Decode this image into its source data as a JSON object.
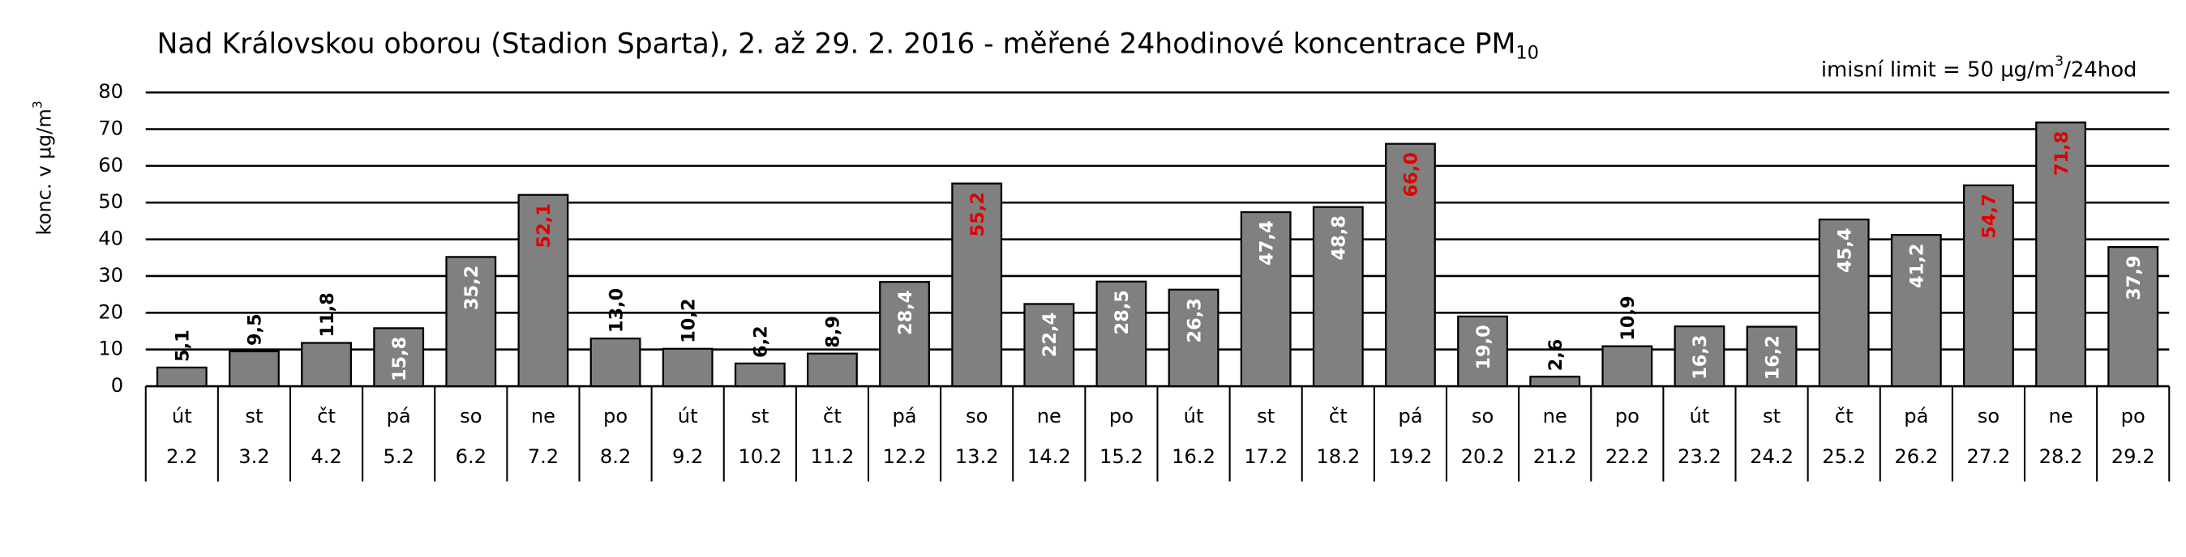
{
  "chart_data": {
    "type": "bar",
    "title": {
      "text": "Nad Královskou oborou (Stadion Sparta), 2. až 29. 2. 2016 - měřené 24hodinové koncentrace PM",
      "subscript": "10"
    },
    "note": {
      "text": "imisní limit = 50 µg/m",
      "superscript": "3",
      "tail": "/24hod"
    },
    "y_label": {
      "text": "konc. v µg/m",
      "superscript": "3"
    },
    "weekdays": [
      "út",
      "st",
      "čt",
      "pá",
      "so",
      "ne",
      "po",
      "út",
      "st",
      "čt",
      "pá",
      "so",
      "ne",
      "po",
      "út",
      "st",
      "čt",
      "pá",
      "so",
      "ne",
      "po",
      "út",
      "st",
      "čt",
      "pá",
      "so",
      "ne",
      "po"
    ],
    "categories": [
      "2.2",
      "3.2",
      "4.2",
      "5.2",
      "6.2",
      "7.2",
      "8.2",
      "9.2",
      "10.2",
      "11.2",
      "12.2",
      "13.2",
      "14.2",
      "15.2",
      "16.2",
      "17.2",
      "18.2",
      "19.2",
      "20.2",
      "21.2",
      "22.2",
      "23.2",
      "24.2",
      "25.2",
      "26.2",
      "27.2",
      "28.2",
      "29.2"
    ],
    "values": [
      5.1,
      9.5,
      11.8,
      15.8,
      35.2,
      52.1,
      13.0,
      10.2,
      6.2,
      8.9,
      28.4,
      55.2,
      22.4,
      28.5,
      26.3,
      47.4,
      48.8,
      66.0,
      19.0,
      2.6,
      10.9,
      16.3,
      16.2,
      45.4,
      41.2,
      54.7,
      71.8,
      37.9
    ],
    "value_labels": [
      "5,1",
      "9,5",
      "11,8",
      "15,8",
      "35,2",
      "52,1",
      "13,0",
      "10,2",
      "6,2",
      "8,9",
      "28,4",
      "55,2",
      "22,4",
      "28,5",
      "26,3",
      "47,4",
      "48,8",
      "66,0",
      "19,0",
      "2,6",
      "10,9",
      "16,3",
      "16,2",
      "45,4",
      "41,2",
      "54,7",
      "71,8",
      "37,9"
    ],
    "value_label_colors": [
      "#000",
      "#000",
      "#000",
      "#fff",
      "#fff",
      "#e00000",
      "#000",
      "#000",
      "#000",
      "#000",
      "#fff",
      "#e00000",
      "#fff",
      "#fff",
      "#fff",
      "#fff",
      "#fff",
      "#e00000",
      "#fff",
      "#000",
      "#000",
      "#fff",
      "#fff",
      "#fff",
      "#fff",
      "#e00000",
      "#e00000",
      "#fff"
    ],
    "color": "#808080",
    "ylim": [
      0,
      80
    ],
    "yticks": [
      0,
      10,
      20,
      30,
      40,
      50,
      60,
      70,
      80
    ],
    "grid": true
  }
}
